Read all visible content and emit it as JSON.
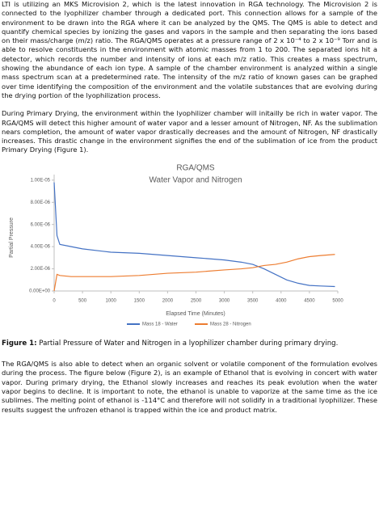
{
  "paragraphs": [
    "LTI is utilizing an MKS Microvision 2, which is the latest innovation in RGA technology. The Microvision 2 is connected to the lyophilizer chamber through a dedicated port. This connection allows for a sample of the environment to be drawn into the RGA where it can be analyzed by the QMS. The QMS is able to detect and quantify chemical species by ionizing the gases and vapors in the sample and then separating the ions based on their mass/charge (m/z) ratio. The RGA/QMS operates at a pressure range of 2 x 10⁻⁴ to 2 x 10⁻⁹ Torr and is able to resolve constituents in the environment with atomic masses from 1 to 200. The separated ions hit a detector, which records the number and intensity of ions at each m/z ratio. This creates a mass spectrum, showing the abundance of each ion type. A sample of the chamber environment is analyzed within a single mass spectrum scan at a predetermined rate. The intensity of the m/z ratio of known gases can be graphed over time identifying the composition of the environment and the volatile substances that are evolving during the drying portion of the lyophilization process.",
    "During Primary Drying, the environment within the lyophilizer chamber will initailly be rich in water vapor. The RGA/QMS will detect this higher amount of water vapor and a lesser amount of Nitrogen, NF. As the sublimation nears completion, the amount of water vapor drastically decreases and the amount of Nitrogen, NF drastically increases. This drastic change in the environment signifies the end of the sublimation of ice from the product Primary Drying (Figure 1)."
  ],
  "chart_data": {
    "type": "line",
    "title": "RGA/QMS",
    "subtitle": "Water Vapor and Nitrogen",
    "x_label": "Elapsed Time (Minutes)",
    "y_label": "Partial Pressure",
    "x": [
      0,
      50,
      100,
      300,
      500,
      1000,
      1500,
      2000,
      2500,
      3000,
      3300,
      3500,
      3700,
      3900,
      4100,
      4300,
      4500,
      4700,
      4950
    ],
    "series": [
      {
        "name": "Mass 18 - Water",
        "color": "#4472c4",
        "values": [
          9.8e-06,
          5e-06,
          4.2e-06,
          4e-06,
          3.8e-06,
          3.5e-06,
          3.4e-06,
          3.2e-06,
          3e-06,
          2.8e-06,
          2.6e-06,
          2.4e-06,
          2e-06,
          1.5e-06,
          1e-06,
          7e-07,
          5e-07,
          4.5e-07,
          4e-07
        ]
      },
      {
        "name": "Mass 28 - Nitrogen",
        "color": "#ed7d31",
        "values": [
          0,
          1.5e-06,
          1.4e-06,
          1.3e-06,
          1.3e-06,
          1.3e-06,
          1.4e-06,
          1.6e-06,
          1.7e-06,
          1.9e-06,
          2e-06,
          2.1e-06,
          2.3e-06,
          2.4e-06,
          2.6e-06,
          2.9e-06,
          3.1e-06,
          3.2e-06,
          3.3e-06
        ]
      }
    ],
    "xlim": [
      0,
      5000
    ],
    "xticks": [
      0,
      500,
      1000,
      1500,
      2000,
      2500,
      3000,
      3500,
      4000,
      4500,
      5000
    ],
    "ylim": [
      0,
      1.05e-05
    ],
    "yticks": [
      {
        "value": 0,
        "label": "0.00E+00"
      },
      {
        "value": 2e-06,
        "label": "2.00E-06"
      },
      {
        "value": 4e-06,
        "label": "4.00E-06"
      },
      {
        "value": 6e-06,
        "label": "6.00E-06"
      },
      {
        "value": 8e-06,
        "label": "8.00E-06"
      },
      {
        "value": 1e-05,
        "label": "1.00E-05"
      }
    ],
    "grid": false,
    "legend": "bottom"
  },
  "caption": {
    "label": "Figure 1:",
    "text": "Partial Pressure of Water and Nitrogen in a lyophilizer chamber during primary drying."
  },
  "closing": "The RGA/QMS is also able to detect when an organic solvent or volatile component of the formulation evolves during the process. The figure below (Figure 2), is an example of Ethanol that is evolving in concert with water vapor. During primary drying, the Ethanol slowly increases and reaches its peak evolution when the water vapor begins to decline. It is important to note, the ethanol is unable to vaporize at the same time as the ice sublimes. The melting point of ethanol is -114°C and therefore will not solidify in a traditional lyophilizer. These results suggest the unfrozen ethanol is trapped within the ice and product matrix."
}
